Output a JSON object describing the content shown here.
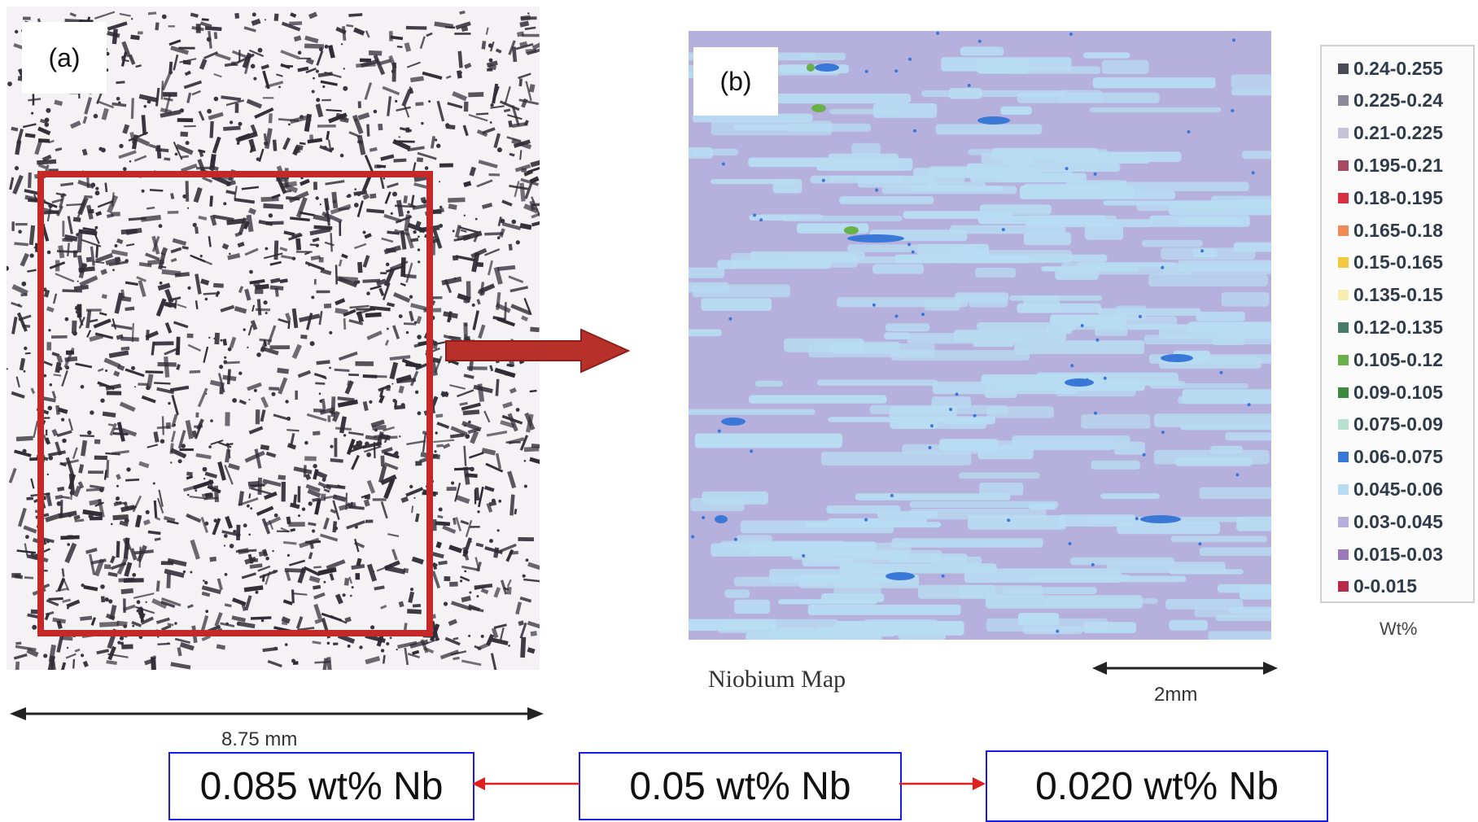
{
  "panel_a": {
    "tag": "(a)",
    "scale_label": "8.75 mm"
  },
  "panel_b": {
    "tag": "(b)",
    "caption": "Niobium Map",
    "scale_label": "2mm"
  },
  "legend": {
    "unit": "Wt%",
    "items": [
      {
        "label": "0.24-0.255",
        "color": "#4a4a56"
      },
      {
        "label": "0.225-0.24",
        "color": "#8c8a9a"
      },
      {
        "label": "0.21-0.225",
        "color": "#c6c2d8"
      },
      {
        "label": "0.195-0.21",
        "color": "#a84a62"
      },
      {
        "label": "0.18-0.195",
        "color": "#d83040"
      },
      {
        "label": "0.165-0.18",
        "color": "#f08a58"
      },
      {
        "label": "0.15-0.165",
        "color": "#f5c842"
      },
      {
        "label": "0.135-0.15",
        "color": "#f5eeb0"
      },
      {
        "label": "0.12-0.135",
        "color": "#4a7a68"
      },
      {
        "label": "0.105-0.12",
        "color": "#6ab04a"
      },
      {
        "label": "0.09-0.105",
        "color": "#3a8a40"
      },
      {
        "label": "0.075-0.09",
        "color": "#b8e0d0"
      },
      {
        "label": "0.06-0.075",
        "color": "#3a78d8"
      },
      {
        "label": "0.045-0.06",
        "color": "#b8dcf2"
      },
      {
        "label": "0.03-0.045",
        "color": "#b8b0dc"
      },
      {
        "label": "0.015-0.03",
        "color": "#9a7ab8"
      },
      {
        "label": "0-0.015",
        "color": "#b82848"
      }
    ]
  },
  "bottom": {
    "left_label": "0.085 wt% Nb",
    "center_label": "0.05 wt% Nb",
    "right_label": "0.020 wt% Nb"
  },
  "colors": {
    "highlight_box": "#c62828",
    "arrow": "#b8302a",
    "box_border": "#1a1ae6",
    "link_arrow": "#e02020",
    "map_background": "#b6b0dc",
    "map_streak": "#b8dcf2"
  }
}
